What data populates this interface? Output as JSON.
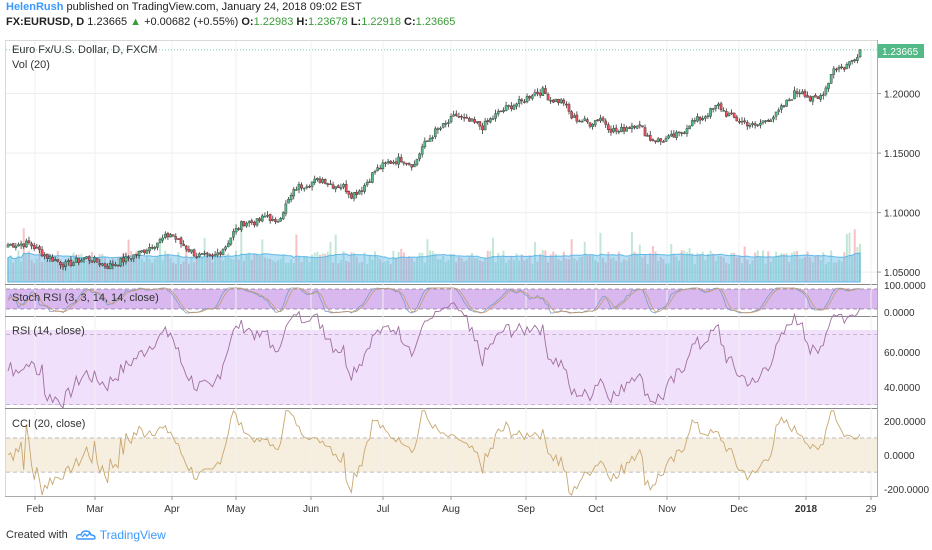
{
  "header": {
    "author": "HelenRush",
    "published_text": "published on TradingView.com, January 24, 2018 09:02 EST",
    "symbol": "FX:EURUSD, D",
    "last": "1.23665",
    "change": "+0.00682 (+0.55%)",
    "o_label": "O:",
    "o_value": "1.22983",
    "h_label": "H:",
    "h_value": "1.23678",
    "l_label": "L:",
    "l_value": "1.22918",
    "c_label": "C:",
    "c_value": "1.23665"
  },
  "footer": {
    "created_with": "Created with",
    "brand": "TradingView"
  },
  "chart_data": [
    {
      "type": "candlestick",
      "title": "Euro Fx/U.S. Dollar, D, FXCM",
      "volume_label": "Vol (20)",
      "last_price_label": "1.23665",
      "ylim": [
        1.04,
        1.245
      ],
      "y_ticks": [
        "1.05000",
        "1.10000",
        "1.15000",
        "1.20000"
      ],
      "x_ticks": [
        "Feb",
        "Mar",
        "Apr",
        "May",
        "Jun",
        "Jul",
        "Aug",
        "Sep",
        "Oct",
        "Nov",
        "Dec",
        "2018",
        "29"
      ],
      "close_anchors": [
        [
          0,
          1.073
        ],
        [
          8,
          1.074
        ],
        [
          15,
          1.063
        ],
        [
          22,
          1.056
        ],
        [
          30,
          1.062
        ],
        [
          38,
          1.055
        ],
        [
          43,
          1.059
        ],
        [
          50,
          1.066
        ],
        [
          57,
          1.075
        ],
        [
          62,
          1.082
        ],
        [
          66,
          1.074
        ],
        [
          72,
          1.064
        ],
        [
          78,
          1.062
        ],
        [
          83,
          1.072
        ],
        [
          86,
          1.083
        ],
        [
          90,
          1.092
        ],
        [
          95,
          1.092
        ],
        [
          99,
          1.098
        ],
        [
          102,
          1.09
        ],
        [
          107,
          1.11
        ],
        [
          110,
          1.121
        ],
        [
          115,
          1.125
        ],
        [
          120,
          1.128
        ],
        [
          124,
          1.123
        ],
        [
          128,
          1.122
        ],
        [
          131,
          1.115
        ],
        [
          135,
          1.12
        ],
        [
          140,
          1.135
        ],
        [
          145,
          1.142
        ],
        [
          150,
          1.145
        ],
        [
          155,
          1.14
        ],
        [
          158,
          1.155
        ],
        [
          163,
          1.168
        ],
        [
          167,
          1.174
        ],
        [
          171,
          1.182
        ],
        [
          174,
          1.178
        ],
        [
          178,
          1.175
        ],
        [
          181,
          1.172
        ],
        [
          184,
          1.178
        ],
        [
          188,
          1.185
        ],
        [
          192,
          1.19
        ],
        [
          196,
          1.193
        ],
        [
          200,
          1.2
        ],
        [
          204,
          1.202
        ],
        [
          207,
          1.195
        ],
        [
          212,
          1.193
        ],
        [
          215,
          1.18
        ],
        [
          218,
          1.178
        ],
        [
          222,
          1.175
        ],
        [
          226,
          1.18
        ],
        [
          230,
          1.17
        ],
        [
          233,
          1.168
        ],
        [
          236,
          1.172
        ],
        [
          240,
          1.175
        ],
        [
          245,
          1.162
        ],
        [
          249,
          1.16
        ],
        [
          253,
          1.163
        ],
        [
          257,
          1.167
        ],
        [
          260,
          1.175
        ],
        [
          265,
          1.18
        ],
        [
          268,
          1.185
        ],
        [
          271,
          1.19
        ],
        [
          274,
          1.183
        ],
        [
          278,
          1.178
        ],
        [
          282,
          1.175
        ],
        [
          285,
          1.172
        ],
        [
          289,
          1.178
        ],
        [
          293,
          1.182
        ],
        [
          296,
          1.19
        ],
        [
          300,
          1.2
        ],
        [
          303,
          1.203
        ],
        [
          306,
          1.195
        ],
        [
          309,
          1.195
        ],
        [
          312,
          1.205
        ],
        [
          315,
          1.222
        ],
        [
          319,
          1.222
        ],
        [
          323,
          1.23
        ],
        [
          325,
          1.2367
        ]
      ]
    },
    {
      "type": "line",
      "title": "Stoch RSI (3, 3, 14, 14, close)",
      "y_ticks": [
        "100.0000",
        "0.0000"
      ],
      "ylim": [
        0,
        100
      ]
    },
    {
      "type": "line",
      "title": "RSI (14, close)",
      "y_ticks": [
        "60.0000",
        "40.0000"
      ],
      "ylim": [
        28,
        80
      ]
    },
    {
      "type": "line",
      "title": "CCI (20, close)",
      "y_ticks": [
        "200.0000",
        "0.0000",
        "-200.0000"
      ],
      "ylim": [
        -240,
        270
      ]
    }
  ],
  "colors": {
    "up": "#53b987",
    "down": "#eb4d5c",
    "candle_edge": "#333333",
    "volume_ma": "#5fb8e8",
    "stoch_bg": "#d9b8f0",
    "rsi_bg": "#f1e0fb",
    "cci_bg": "#f6efe0",
    "cci_line": "#c8a770",
    "rsi_line": "#9e6f9e",
    "accent": "#3b99fc"
  }
}
